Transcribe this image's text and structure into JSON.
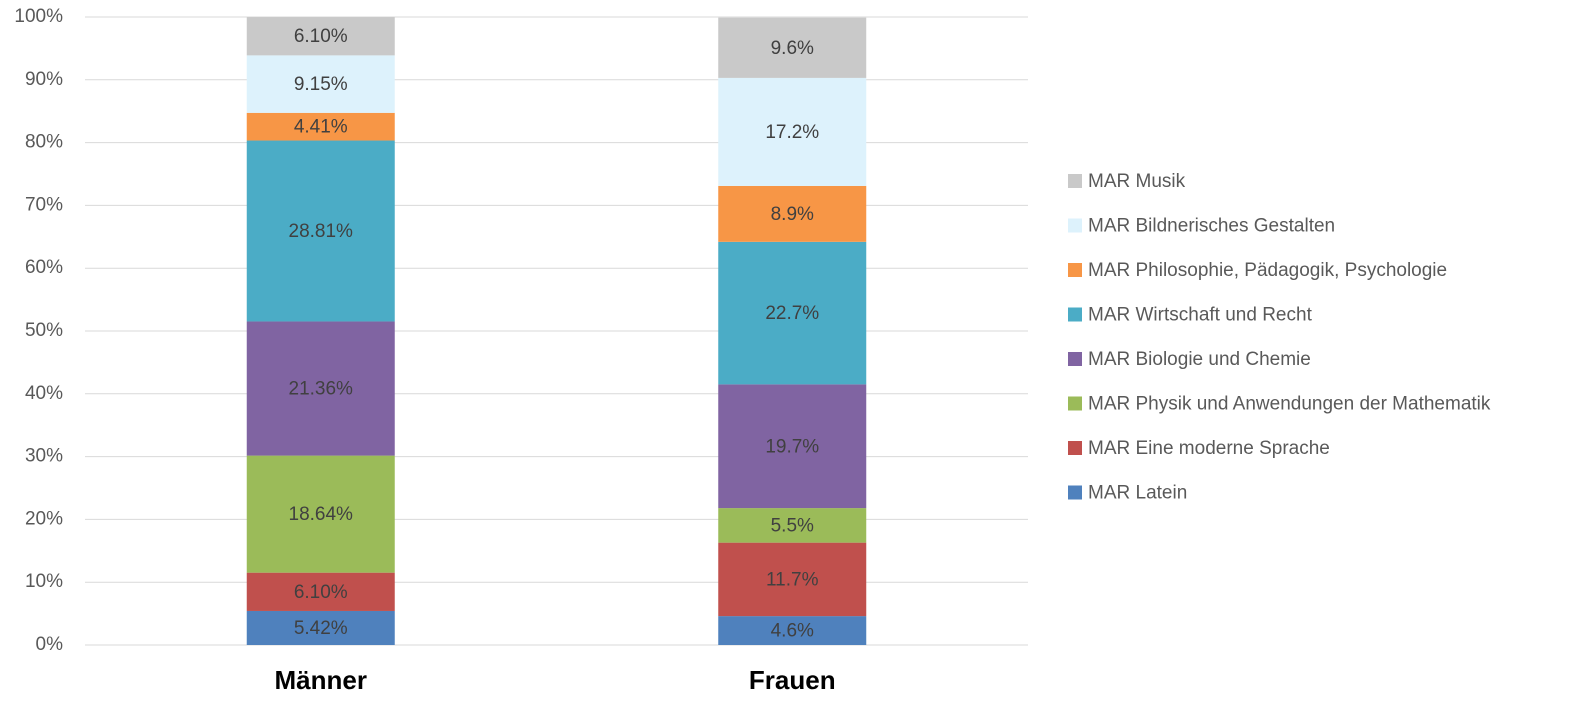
{
  "chart_data": {
    "type": "stacked_bar",
    "categories": [
      "Männer",
      "Frauen"
    ],
    "series": [
      {
        "name": "MAR Latein",
        "color": "#4f81bd",
        "values": [
          5.42,
          4.6
        ],
        "value_labels": [
          "5.42%",
          "4.6%"
        ]
      },
      {
        "name": "MAR Eine moderne Sprache",
        "color": "#c0504d",
        "values": [
          6.1,
          11.7
        ],
        "value_labels": [
          "6.10%",
          "11.7%"
        ]
      },
      {
        "name": "MAR Physik und Anwendungen der Mathematik",
        "color": "#9bbb59",
        "values": [
          18.64,
          5.5
        ],
        "value_labels": [
          "18.64%",
          "5.5%"
        ]
      },
      {
        "name": "MAR Biologie und Chemie",
        "color": "#8064a2",
        "values": [
          21.36,
          19.7
        ],
        "value_labels": [
          "21.36%",
          "19.7%"
        ]
      },
      {
        "name": "MAR Wirtschaft und Recht",
        "color": "#4bacc6",
        "values": [
          28.81,
          22.7
        ],
        "value_labels": [
          "28.81%",
          "22.7%"
        ]
      },
      {
        "name": "MAR Philosophie, Pädagogik, Psychologie",
        "color": "#f79646",
        "values": [
          4.41,
          8.9
        ],
        "value_labels": [
          "4.41%",
          "8.9%"
        ]
      },
      {
        "name": "MAR Bildnerisches Gestalten",
        "color": "#ddf2fc",
        "values": [
          9.15,
          17.2
        ],
        "value_labels": [
          "9.15%",
          "17.2%"
        ]
      },
      {
        "name": "MAR Musik",
        "color": "#c9c9c9",
        "values": [
          6.1,
          9.6
        ],
        "value_labels": [
          "6.10%",
          "9.6%"
        ]
      }
    ],
    "ylim": [
      0,
      100
    ],
    "yticks": [
      {
        "value": 0,
        "label": "0%"
      },
      {
        "value": 10,
        "label": "10%"
      },
      {
        "value": 20,
        "label": "20%"
      },
      {
        "value": 30,
        "label": "30%"
      },
      {
        "value": 40,
        "label": "40%"
      },
      {
        "value": 50,
        "label": "50%"
      },
      {
        "value": 60,
        "label": "60%"
      },
      {
        "value": 70,
        "label": "70%"
      },
      {
        "value": 80,
        "label": "80%"
      },
      {
        "value": 90,
        "label": "90%"
      },
      {
        "value": 100,
        "label": "100%"
      }
    ],
    "grid": true,
    "legend": "right"
  }
}
